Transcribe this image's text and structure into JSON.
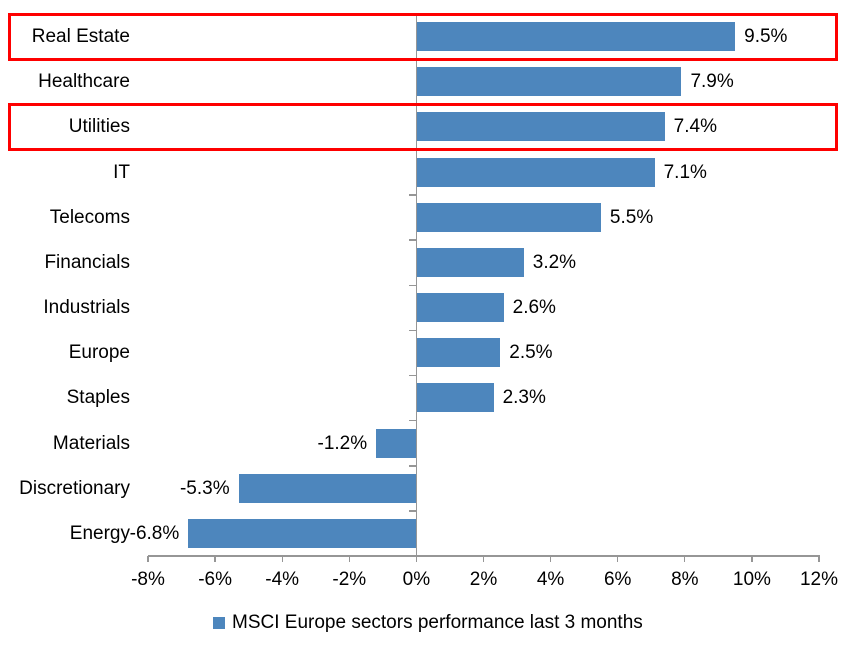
{
  "chart_data": {
    "type": "bar",
    "orientation": "horizontal",
    "title": "",
    "categories": [
      "Real Estate",
      "Healthcare",
      "Utilities",
      "IT",
      "Telecoms",
      "Financials",
      "Industrials",
      "Europe",
      "Staples",
      "Materials",
      "Discretionary",
      "Energy"
    ],
    "values": [
      9.5,
      7.9,
      7.4,
      7.1,
      5.5,
      3.2,
      2.6,
      2.5,
      2.3,
      -1.2,
      -5.3,
      -6.8
    ],
    "data_labels": [
      "9.5%",
      "7.9%",
      "7.4%",
      "7.1%",
      "5.5%",
      "3.2%",
      "2.6%",
      "2.5%",
      "2.3%",
      "-1.2%",
      "-5.3%",
      "-6.8%"
    ],
    "xlim": [
      -8,
      12
    ],
    "x_ticks": [
      -8,
      -6,
      -4,
      -2,
      0,
      2,
      4,
      6,
      8,
      10,
      12
    ],
    "x_tick_labels": [
      "-8%",
      "-6%",
      "-4%",
      "-2%",
      "0%",
      "2%",
      "4%",
      "6%",
      "8%",
      "10%",
      "12%"
    ],
    "grid": false,
    "legend": "MSCI Europe sectors performance last 3 months",
    "legend_position": "bottom",
    "highlighted_categories": [
      "Real Estate",
      "Utilities"
    ],
    "colors": {
      "bar": "#4d86bd",
      "axis": "#969696",
      "highlight_box": "#fe0000",
      "text": "#000000",
      "background": "#ffffff"
    }
  }
}
